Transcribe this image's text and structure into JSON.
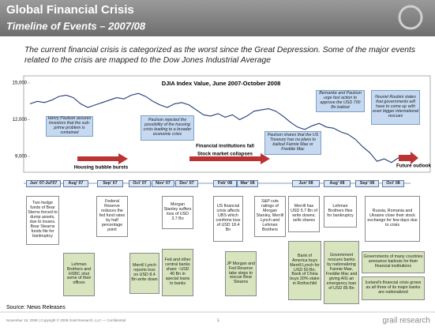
{
  "header": {
    "title": "Global Financial Crisis",
    "subtitle": "Timeline of Events – 2007/08"
  },
  "intro": "The current financial crisis is categorized as the worst since the Great Depression. Some of the major events related to the crisis are mapped to the Dow Jones Industrial Average",
  "chart_data": {
    "type": "line",
    "title": "DJIA Index Value, June 2007-October 2008",
    "categories": [
      null,
      null,
      null,
      null,
      null,
      null,
      null,
      null,
      null,
      null,
      null,
      null,
      null,
      null,
      null,
      null,
      null,
      null,
      null,
      null,
      null,
      null,
      null,
      null,
      null,
      null,
      null,
      null,
      null,
      null,
      null,
      null,
      null,
      null,
      null,
      null,
      null,
      null,
      null,
      null,
      null,
      null,
      null,
      null,
      null,
      null,
      null,
      null,
      null,
      null,
      null,
      null
    ],
    "values": [
      13300,
      13500,
      13400,
      13600,
      13900,
      14000,
      13800,
      13300,
      13000,
      13200,
      13400,
      13600,
      13800,
      13700,
      14000,
      14150,
      13900,
      13500,
      13200,
      13000,
      13300,
      13400,
      13200,
      12800,
      12400,
      12300,
      12500,
      12200,
      12400,
      12000,
      12300,
      12700,
      12800,
      12900,
      12700,
      12300,
      11800,
      11400,
      11200,
      11500,
      11700,
      11400,
      11300,
      11000,
      10800,
      10400,
      9800,
      9300,
      8600,
      8800,
      8500,
      8900
    ],
    "color": "#1f3d7a",
    "ylim": [
      7900,
      15100
    ],
    "yticks": [
      {
        "value": 9000,
        "label": "9,000"
      },
      {
        "value": 12000,
        "label": "12,000"
      },
      {
        "value": 15000,
        "label": "15,000"
      }
    ],
    "grid": false,
    "callouts": [
      "Henry Paulson assures investors that the sub-prime problem is contained",
      "Paulson rejected the possibility of the housing crisis leading to a broader economic crisis",
      "Paulson shares that the US Treasury has no plans to bailout Fannie Mae or Freddie Mac",
      "Bernanke and Paulson urge fast action to approve the USD 700 Bn bailout",
      "Nouriel Roubini states that governments will have to come up with even bigger international rescues"
    ],
    "annotations": [
      "Housing bubble bursts",
      "Financial institutions fall",
      "Stock market collapses",
      "Future outlook"
    ]
  },
  "timeline": [
    "Jun' 07-Jul'07",
    "Aug' 07",
    "Sep' 07",
    "Oct' 07",
    "Nov' 07",
    "Dec' 07",
    "Feb' 08",
    "Mar' 08",
    "Jun' 08",
    "Aug' 08",
    "Sep' 08",
    "Oct' 08"
  ],
  "events": [
    {
      "text": "Two hedge funds of Bear Sterns forced to dump assets, due to losses. Bear Stearns funds file for bankruptcy",
      "color": "#ffffff"
    },
    {
      "text": "Lehman Brothers and HSBC shut some of their offices",
      "color": "#d7e4bd"
    },
    {
      "text": "Federal Reserve reduces the fed fund rates by half percentage point",
      "color": "#ffffff"
    },
    {
      "text": "Merrill Lynch reports loss on USD 8.4 Bn write down",
      "color": "#d7e4bd"
    },
    {
      "text": "Morgan Stanley suffers loss of USD 3.7 Bn",
      "color": "#ffffff"
    },
    {
      "text": "Fed and other central banks share ~USD 40 Bn in special loans to banks",
      "color": "#d7e4bd"
    },
    {
      "text": "US financial crisis affects UBS which confirms loss of USD 18.4 Bn",
      "color": "#ffffff"
    },
    {
      "text": "JP Morgan and Fed Reserve take steps to rescue Bear Stearns",
      "color": "#d7e4bd"
    },
    {
      "text": "S&P cuts ratings of Morgan Stanley, Merrill Lynch and Lehman Brothers",
      "color": "#ffffff"
    },
    {
      "text": "Merrill has USD 5.7 Bn of write downs; sells shares",
      "color": "#ffffff"
    },
    {
      "text": "Bank of America buys Merrill Lynch for USD 50 Bn; Bank of China buys 20% stake in Rothschild",
      "color": "#d7e4bd"
    },
    {
      "text": "Lehman Brothers files for bankruptcy",
      "color": "#ffffff"
    },
    {
      "text": "Government rescues banks by nationalizing Fannie Mae, Freddie Mac and giving AIG an emergency loan of USD 85 Bn",
      "color": "#d7e4bd"
    },
    {
      "text": "Russia, Romania and Ukraine close their stock exchange for few days due to crisis",
      "color": "#ffffff"
    },
    {
      "text": "Governments of many countries announce bailouts for their financial institutions",
      "color": "#d7e4bd"
    },
    {
      "text": "Iceland's financial crisis grows as all three of its major banks are nationalized",
      "color": "#d7e4bd"
    }
  ],
  "footer": {
    "source": "Source: News Releases",
    "copyright": "November 19, 2008  |  Copyright © 2008 Grail Research, LLC — Confidential",
    "page": "5",
    "brand": "grail research"
  }
}
